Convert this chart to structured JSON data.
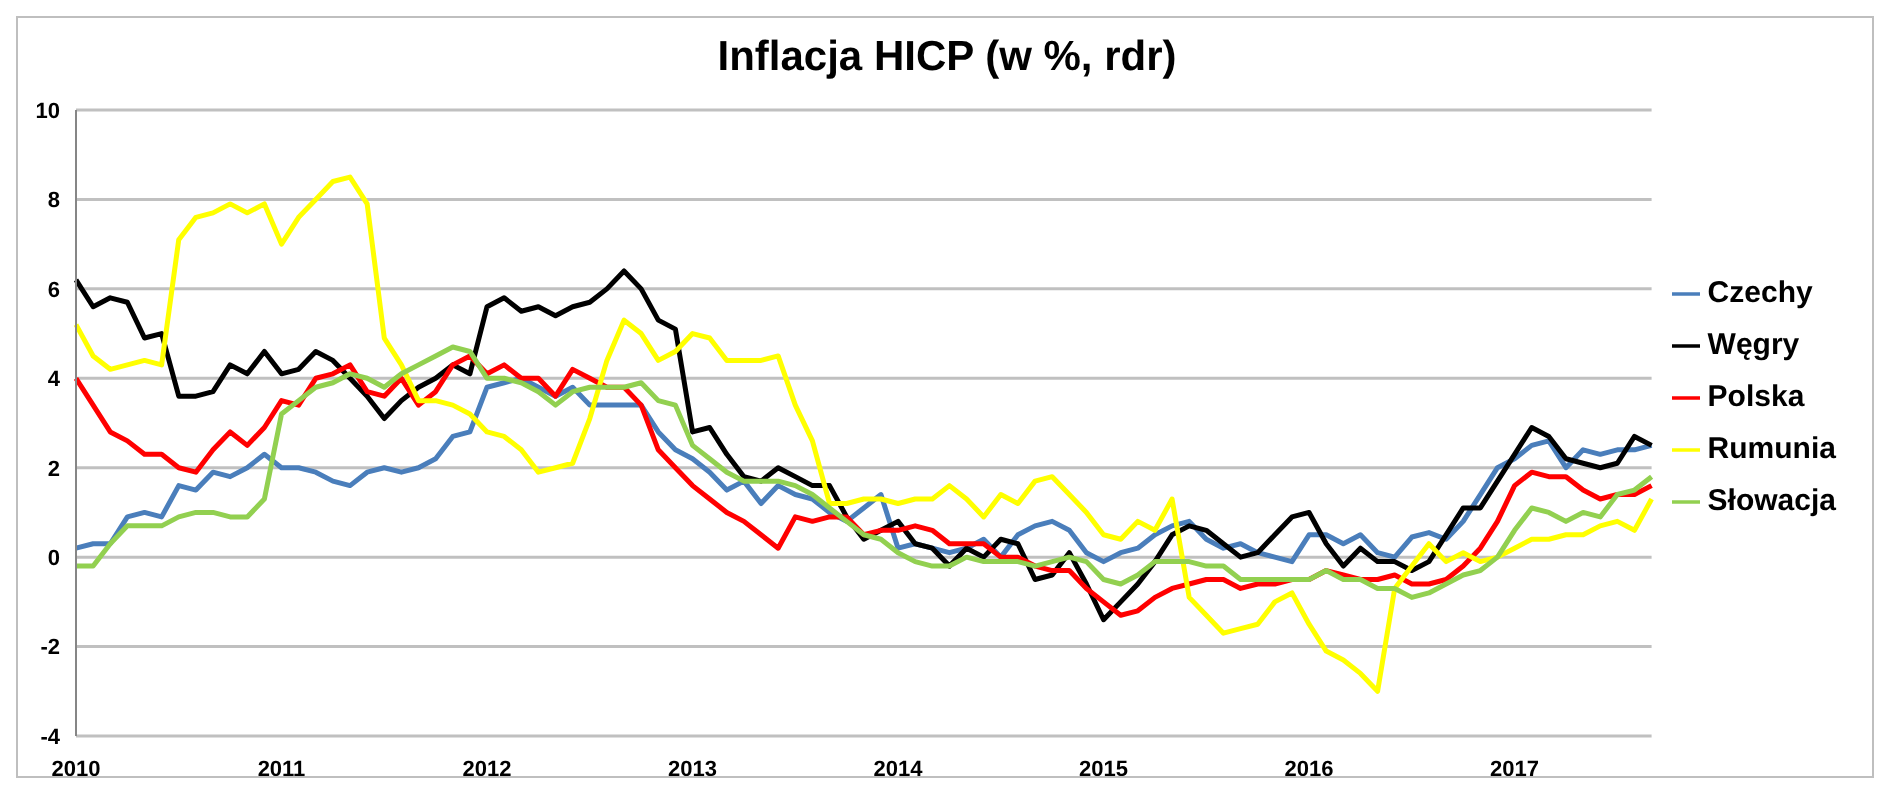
{
  "chart_data": {
    "type": "line",
    "title": "Inflacja HICP (w %, rdr)",
    "categories": [
      "2010",
      null,
      null,
      null,
      null,
      null,
      null,
      null,
      null,
      null,
      null,
      null,
      "2011",
      null,
      null,
      null,
      null,
      null,
      null,
      null,
      null,
      null,
      null,
      null,
      "2012",
      null,
      null,
      null,
      null,
      null,
      null,
      null,
      null,
      null,
      null,
      null,
      "2013",
      null,
      null,
      null,
      null,
      null,
      null,
      null,
      null,
      null,
      null,
      null,
      "2014",
      null,
      null,
      null,
      null,
      null,
      null,
      null,
      null,
      null,
      null,
      null,
      "2015",
      null,
      null,
      null,
      null,
      null,
      null,
      null,
      null,
      null,
      null,
      null,
      "2016",
      null,
      null,
      null,
      null,
      null,
      null,
      null,
      null,
      null,
      null,
      null,
      "2017",
      null,
      null,
      null,
      null,
      null,
      null,
      null,
      null
    ],
    "series": [
      {
        "name": "Czechy",
        "color": "#4a7ebb",
        "values": [
          0.2,
          0.3,
          0.3,
          0.9,
          1.0,
          0.9,
          1.6,
          1.5,
          1.9,
          1.8,
          2.0,
          2.3,
          2.0,
          2.0,
          1.9,
          1.7,
          1.6,
          1.9,
          2.0,
          1.9,
          2.0,
          2.2,
          2.7,
          2.8,
          3.8,
          3.9,
          4.0,
          3.8,
          3.6,
          3.8,
          3.4,
          3.4,
          3.4,
          3.4,
          2.8,
          2.4,
          2.2,
          1.9,
          1.5,
          1.7,
          1.2,
          1.6,
          1.4,
          1.3,
          1.0,
          0.8,
          1.1,
          1.4,
          0.2,
          0.3,
          0.2,
          0.1,
          0.2,
          0.4,
          0.0,
          0.5,
          0.7,
          0.8,
          0.6,
          0.1,
          -0.1,
          0.1,
          0.2,
          0.5,
          0.7,
          0.8,
          0.4,
          0.2,
          0.3,
          0.1,
          0.0,
          -0.1,
          0.5,
          0.5,
          0.3,
          0.5,
          0.1,
          0.0,
          0.45,
          0.55,
          0.4,
          0.8,
          1.4,
          2.0,
          2.2,
          2.5,
          2.6,
          2.0,
          2.4,
          2.3,
          2.4,
          2.4,
          2.5
        ]
      },
      {
        "name": "Węgry",
        "color": "#000000",
        "values": [
          6.2,
          5.6,
          5.8,
          5.7,
          4.9,
          5.0,
          3.6,
          3.6,
          3.7,
          4.3,
          4.1,
          4.6,
          4.1,
          4.2,
          4.6,
          4.4,
          4.0,
          3.6,
          3.1,
          3.5,
          3.8,
          4.0,
          4.3,
          4.1,
          5.6,
          5.8,
          5.5,
          5.6,
          5.4,
          5.6,
          5.7,
          6.0,
          6.4,
          6.0,
          5.3,
          5.1,
          2.8,
          2.9,
          2.3,
          1.8,
          1.7,
          2.0,
          1.8,
          1.6,
          1.6,
          0.9,
          0.4,
          0.6,
          0.8,
          0.3,
          0.2,
          -0.2,
          0.2,
          0.0,
          0.4,
          0.3,
          -0.5,
          -0.4,
          0.1,
          -0.6,
          -1.4,
          -1.0,
          -0.6,
          -0.1,
          0.5,
          0.7,
          0.6,
          0.3,
          0.0,
          0.1,
          0.5,
          0.9,
          1.0,
          0.3,
          -0.2,
          0.2,
          -0.1,
          -0.1,
          -0.3,
          -0.1,
          0.5,
          1.1,
          1.1,
          1.7,
          2.3,
          2.9,
          2.7,
          2.2,
          2.1,
          2.0,
          2.1,
          2.7,
          2.5
        ]
      },
      {
        "name": "Polska",
        "color": "#ff0000",
        "values": [
          4.0,
          3.4,
          2.8,
          2.6,
          2.3,
          2.3,
          2.0,
          1.9,
          2.4,
          2.8,
          2.5,
          2.9,
          3.5,
          3.4,
          4.0,
          4.1,
          4.3,
          3.7,
          3.6,
          4.0,
          3.4,
          3.7,
          4.3,
          4.5,
          4.1,
          4.3,
          4.0,
          4.0,
          3.6,
          4.2,
          4.0,
          3.8,
          3.8,
          3.4,
          2.4,
          2.0,
          1.6,
          1.3,
          1.0,
          0.8,
          0.5,
          0.2,
          0.9,
          0.8,
          0.9,
          0.9,
          0.5,
          0.6,
          0.6,
          0.7,
          0.6,
          0.3,
          0.3,
          0.3,
          0.0,
          0.0,
          -0.2,
          -0.3,
          -0.3,
          -0.7,
          -1.0,
          -1.3,
          -1.2,
          -0.9,
          -0.7,
          -0.6,
          -0.5,
          -0.5,
          -0.7,
          -0.6,
          -0.6,
          -0.5,
          -0.5,
          -0.3,
          -0.4,
          -0.5,
          -0.5,
          -0.4,
          -0.6,
          -0.6,
          -0.5,
          -0.2,
          0.2,
          0.8,
          1.6,
          1.9,
          1.8,
          1.8,
          1.5,
          1.3,
          1.4,
          1.4,
          1.6
        ]
      },
      {
        "name": "Rumunia",
        "color": "#ffff00",
        "values": [
          5.2,
          4.5,
          4.2,
          4.3,
          4.4,
          4.3,
          7.1,
          7.6,
          7.7,
          7.9,
          7.7,
          7.9,
          7.0,
          7.6,
          8.0,
          8.4,
          8.5,
          7.9,
          4.9,
          4.3,
          3.5,
          3.5,
          3.4,
          3.2,
          2.8,
          2.7,
          2.4,
          1.9,
          2.0,
          2.1,
          3.1,
          4.4,
          5.3,
          5.0,
          4.4,
          4.6,
          5.0,
          4.9,
          4.4,
          4.4,
          4.4,
          4.5,
          3.4,
          2.6,
          1.2,
          1.2,
          1.3,
          1.3,
          1.2,
          1.3,
          1.3,
          1.6,
          1.3,
          0.9,
          1.4,
          1.2,
          1.7,
          1.8,
          1.4,
          1.0,
          0.5,
          0.4,
          0.8,
          0.6,
          1.3,
          -0.9,
          -1.3,
          -1.7,
          -1.6,
          -1.5,
          -1.0,
          -0.8,
          -1.5,
          -2.1,
          -2.3,
          -2.6,
          -3.0,
          -0.7,
          -0.2,
          0.3,
          -0.1,
          0.1,
          -0.1,
          0.0,
          0.2,
          0.4,
          0.4,
          0.5,
          0.5,
          0.7,
          0.8,
          0.6,
          1.3
        ]
      },
      {
        "name": "Słowacja",
        "color": "#92d050",
        "values": [
          -0.2,
          -0.2,
          0.3,
          0.7,
          0.7,
          0.7,
          0.9,
          1.0,
          1.0,
          0.9,
          0.9,
          1.3,
          3.2,
          3.5,
          3.8,
          3.9,
          4.1,
          4.0,
          3.8,
          4.1,
          4.3,
          4.5,
          4.7,
          4.6,
          4.0,
          4.0,
          3.9,
          3.7,
          3.4,
          3.7,
          3.8,
          3.8,
          3.8,
          3.9,
          3.5,
          3.4,
          2.5,
          2.2,
          1.9,
          1.7,
          1.7,
          1.7,
          1.6,
          1.4,
          1.1,
          0.8,
          0.5,
          0.4,
          0.1,
          -0.1,
          -0.2,
          -0.2,
          0.0,
          -0.1,
          -0.1,
          -0.1,
          -0.2,
          -0.1,
          0.0,
          -0.1,
          -0.5,
          -0.6,
          -0.4,
          -0.1,
          -0.1,
          -0.1,
          -0.2,
          -0.2,
          -0.5,
          -0.5,
          -0.5,
          -0.5,
          -0.5,
          -0.3,
          -0.5,
          -0.5,
          -0.7,
          -0.7,
          -0.9,
          -0.8,
          -0.6,
          -0.4,
          -0.3,
          0.0,
          0.6,
          1.1,
          1.0,
          0.8,
          1.0,
          0.9,
          1.4,
          1.5,
          1.8
        ]
      }
    ],
    "ylim": [
      -4,
      10
    ],
    "yticks": [
      -4,
      -2,
      0,
      2,
      4,
      6,
      8,
      10
    ],
    "grid": "y",
    "legend": "right",
    "marker": "none",
    "line_style": "solid"
  }
}
